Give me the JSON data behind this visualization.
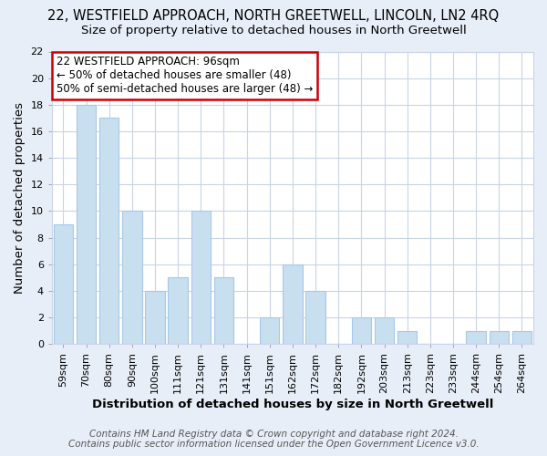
{
  "title": "22, WESTFIELD APPROACH, NORTH GREETWELL, LINCOLN, LN2 4RQ",
  "subtitle": "Size of property relative to detached houses in North Greetwell",
  "xlabel": "Distribution of detached houses by size in North Greetwell",
  "ylabel": "Number of detached properties",
  "footer_line1": "Contains HM Land Registry data © Crown copyright and database right 2024.",
  "footer_line2": "Contains public sector information licensed under the Open Government Licence v3.0.",
  "bin_labels": [
    "59sqm",
    "70sqm",
    "80sqm",
    "90sqm",
    "100sqm",
    "111sqm",
    "121sqm",
    "131sqm",
    "141sqm",
    "151sqm",
    "162sqm",
    "172sqm",
    "182sqm",
    "192sqm",
    "203sqm",
    "213sqm",
    "223sqm",
    "233sqm",
    "244sqm",
    "254sqm",
    "264sqm"
  ],
  "bar_heights": [
    9,
    18,
    17,
    10,
    4,
    5,
    10,
    5,
    0,
    2,
    6,
    4,
    0,
    2,
    2,
    1,
    0,
    0,
    1,
    1,
    1
  ],
  "bar_color": "#c8dff0",
  "bar_edge_color": "#a8c8e8",
  "annotation_title": "22 WESTFIELD APPROACH: 96sqm",
  "annotation_line1": "← 50% of detached houses are smaller (48)",
  "annotation_line2": "50% of semi-detached houses are larger (48) →",
  "annotation_box_color": "#ffffff",
  "annotation_box_edge_color": "#cc0000",
  "ylim": [
    0,
    22
  ],
  "yticks": [
    0,
    2,
    4,
    6,
    8,
    10,
    12,
    14,
    16,
    18,
    20,
    22
  ],
  "background_color": "#e8eef8",
  "plot_background_color": "#ffffff",
  "grid_color": "#c8d4e8",
  "title_fontsize": 10.5,
  "subtitle_fontsize": 9.5,
  "axis_label_fontsize": 9.5,
  "tick_fontsize": 8,
  "annotation_fontsize": 8.5,
  "footer_fontsize": 7.5
}
